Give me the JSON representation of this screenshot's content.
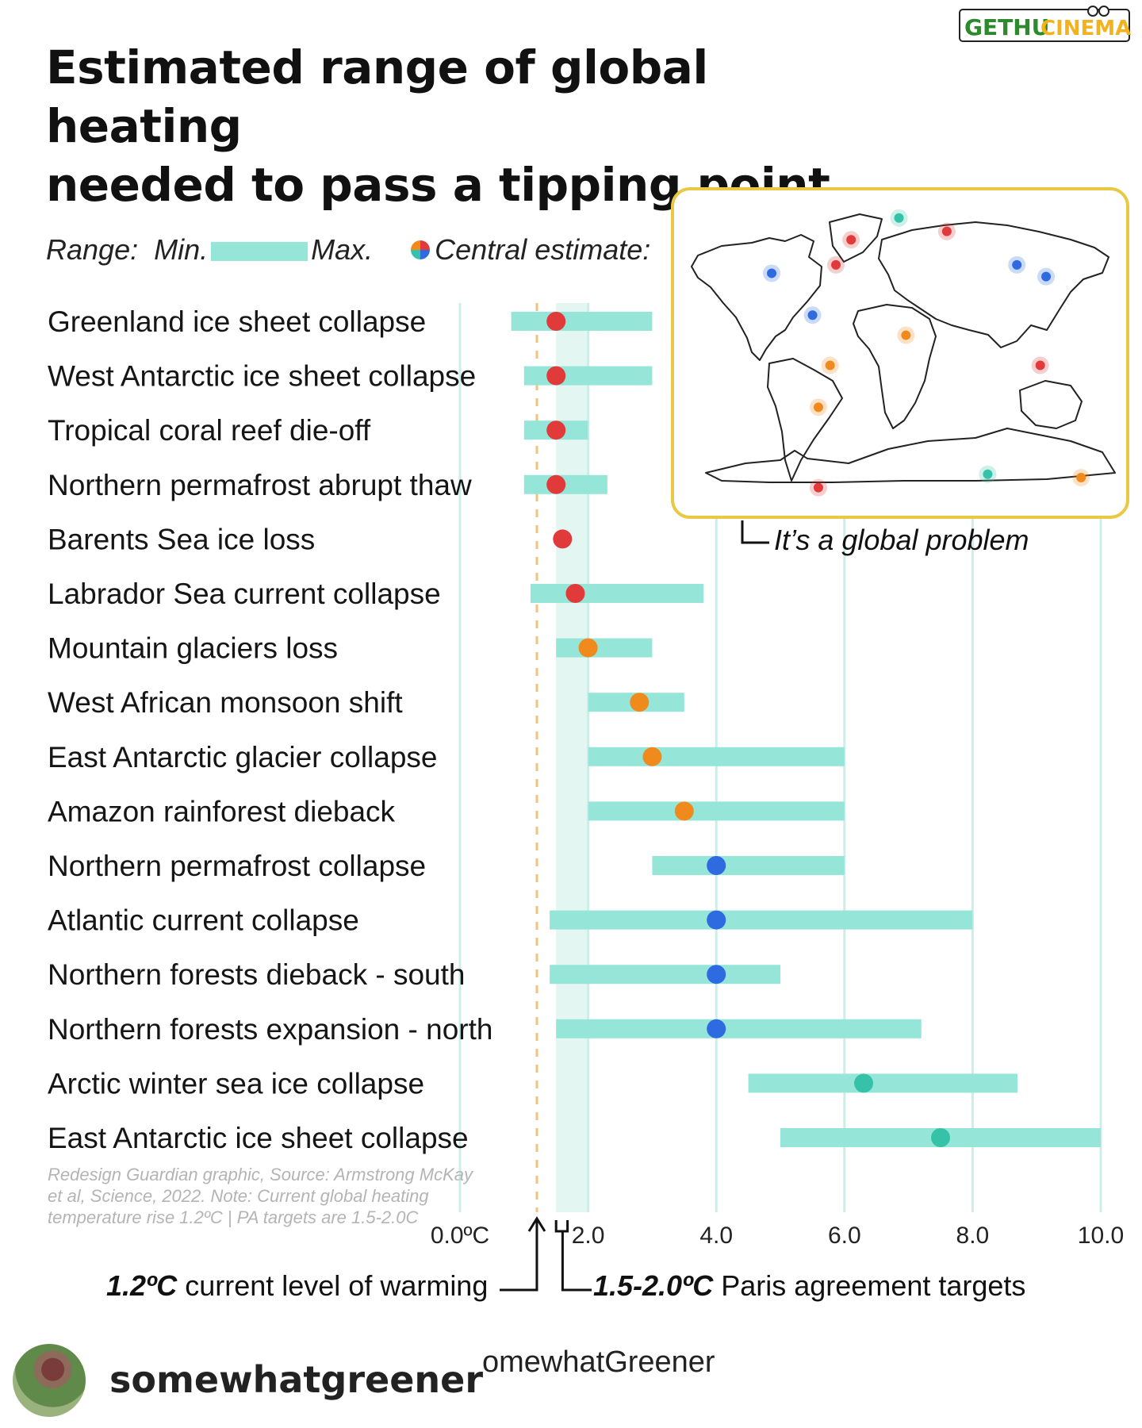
{
  "header": {
    "title_line1": "Estimated range of global heating",
    "title_line2": "needed to pass a tipping point"
  },
  "watermark": {
    "text_a": "GETHU",
    "text_b": "CINEMA",
    "color_a": "#2c8a2c",
    "color_b": "#f2b21a"
  },
  "legend": {
    "range_label": "Range:",
    "min_label": "Min.",
    "max_label": "Max.",
    "central_label": "Central estimate:"
  },
  "colors": {
    "bar": "#95e6d8",
    "red": "#e03a3a",
    "orange": "#f08a1c",
    "blue": "#2e6be0",
    "teal": "#36c2a9",
    "paris_band": "#e4f6f2",
    "current_line": "#f2c27a",
    "map_border": "#e9c944"
  },
  "chart_data": {
    "type": "range",
    "x_unit": "°C",
    "xlim": [
      0,
      10
    ],
    "x_ticks": [
      {
        "value": 0,
        "label": "0.0ºC"
      },
      {
        "value": 2,
        "label": "2.0"
      },
      {
        "value": 4,
        "label": "4.0"
      },
      {
        "value": 6,
        "label": "6.0"
      },
      {
        "value": 8,
        "label": "8.0"
      },
      {
        "value": 10,
        "label": "10.0"
      }
    ],
    "current_warming": 1.2,
    "paris_range": [
      1.5,
      2.0
    ],
    "rows": [
      {
        "label": "Greenland ice sheet collapse",
        "min": 0.8,
        "max": 3.0,
        "central": 1.5,
        "color": "red"
      },
      {
        "label": "West Antarctic ice sheet collapse",
        "min": 1.0,
        "max": 3.0,
        "central": 1.5,
        "color": "red"
      },
      {
        "label": "Tropical coral reef die-off",
        "min": 1.0,
        "max": 2.0,
        "central": 1.5,
        "color": "red"
      },
      {
        "label": "Northern permafrost abrupt thaw",
        "min": 1.0,
        "max": 2.3,
        "central": 1.5,
        "color": "red"
      },
      {
        "label": "Barents Sea ice loss",
        "min": null,
        "max": null,
        "central": 1.6,
        "color": "red"
      },
      {
        "label": "Labrador Sea current collapse",
        "min": 1.1,
        "max": 3.8,
        "central": 1.8,
        "color": "red"
      },
      {
        "label": "Mountain glaciers loss",
        "min": 1.5,
        "max": 3.0,
        "central": 2.0,
        "color": "orange"
      },
      {
        "label": "West African monsoon shift",
        "min": 2.0,
        "max": 3.5,
        "central": 2.8,
        "color": "orange"
      },
      {
        "label": "East Antarctic glacier collapse",
        "min": 2.0,
        "max": 6.0,
        "central": 3.0,
        "color": "orange"
      },
      {
        "label": "Amazon rainforest dieback",
        "min": 2.0,
        "max": 6.0,
        "central": 3.5,
        "color": "orange"
      },
      {
        "label": "Northern permafrost collapse",
        "min": 3.0,
        "max": 6.0,
        "central": 4.0,
        "color": "blue"
      },
      {
        "label": "Atlantic current collapse",
        "min": 1.4,
        "max": 8.0,
        "central": 4.0,
        "color": "blue"
      },
      {
        "label": "Northern forests dieback - south",
        "min": 1.4,
        "max": 5.0,
        "central": 4.0,
        "color": "blue"
      },
      {
        "label": "Northern forests expansion - north",
        "min": 1.5,
        "max": 7.2,
        "central": 4.0,
        "color": "blue"
      },
      {
        "label": "Arctic winter sea ice collapse",
        "min": 4.5,
        "max": 8.7,
        "central": 6.3,
        "color": "teal"
      },
      {
        "label": "East Antarctic ice sheet collapse",
        "min": 5.0,
        "max": 10.0,
        "central": 7.5,
        "color": "teal"
      }
    ]
  },
  "notes": {
    "source": "Redesign Guardian graphic, Source: Armstrong McKay et al, Science, 2022. Note: Current global heating temperature rise 1.2ºC | PA targets are 1.5-2.0C"
  },
  "annotations": {
    "current_value": "1.2ºC",
    "current_text": " current level of warming",
    "paris_value": "1.5-2.0ºC",
    "paris_text": " Paris agreement targets"
  },
  "map": {
    "caption": "It’s a global problem",
    "dots": [
      {
        "lon": -1,
        "lat": 83,
        "color": "teal"
      },
      {
        "lon": -55,
        "lat": 55,
        "color": "red"
      },
      {
        "lon": -42,
        "lat": 70,
        "color": "red"
      },
      {
        "lon": 40,
        "lat": 75,
        "color": "red"
      },
      {
        "lon": -110,
        "lat": 50,
        "color": "blue"
      },
      {
        "lon": -75,
        "lat": 25,
        "color": "blue"
      },
      {
        "lon": 100,
        "lat": 55,
        "color": "blue"
      },
      {
        "lon": 125,
        "lat": 48,
        "color": "blue"
      },
      {
        "lon": 5,
        "lat": 13,
        "color": "orange"
      },
      {
        "lon": -60,
        "lat": -5,
        "color": "orange"
      },
      {
        "lon": -70,
        "lat": -30,
        "color": "orange"
      },
      {
        "lon": 120,
        "lat": -5,
        "color": "red"
      },
      {
        "lon": -70,
        "lat": -78,
        "color": "red"
      },
      {
        "lon": 75,
        "lat": -70,
        "color": "teal"
      },
      {
        "lon": 155,
        "lat": -72,
        "color": "orange"
      }
    ]
  },
  "footer": {
    "username": "somewhatgreener",
    "brand": "omewhatGreener"
  }
}
